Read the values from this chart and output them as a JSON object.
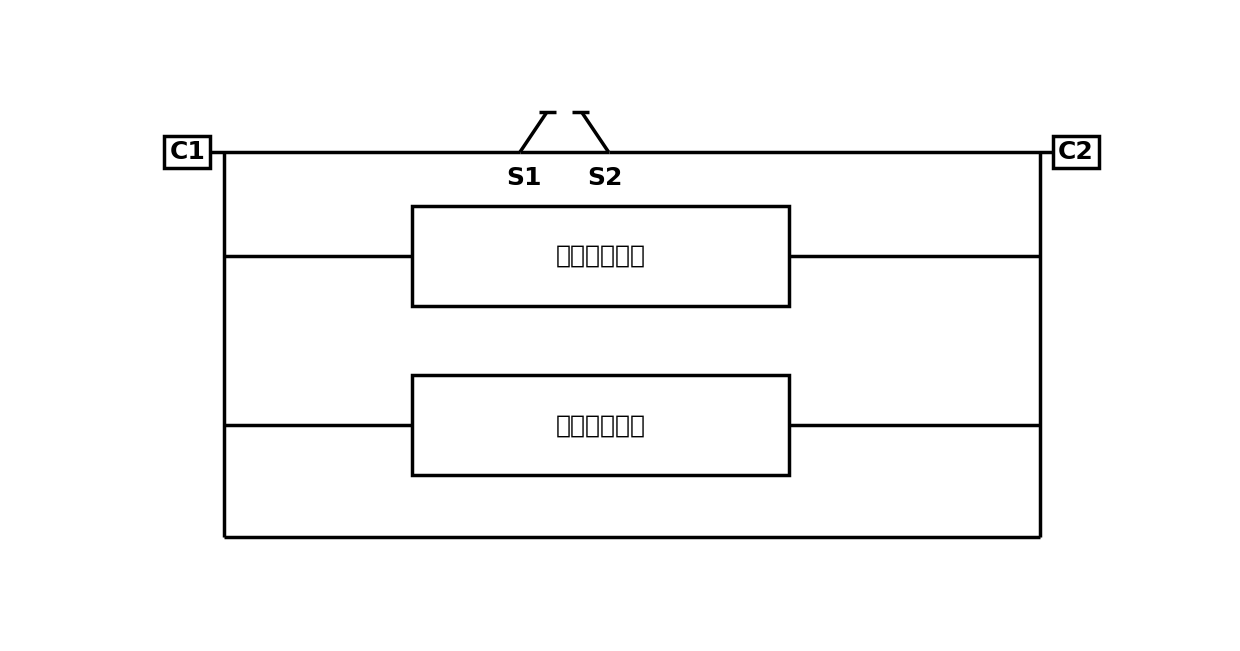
{
  "bg_color": "#ffffff",
  "line_color": "#000000",
  "line_width": 2.5,
  "fig_width": 12.4,
  "fig_height": 6.51,
  "c1_label": "C1",
  "c2_label": "C2",
  "s1_label": "S1",
  "s2_label": "S2",
  "box1_label": "固态开关支路",
  "box2_label": "振荡转移支路",
  "font_size": 18,
  "label_font_size": 18
}
